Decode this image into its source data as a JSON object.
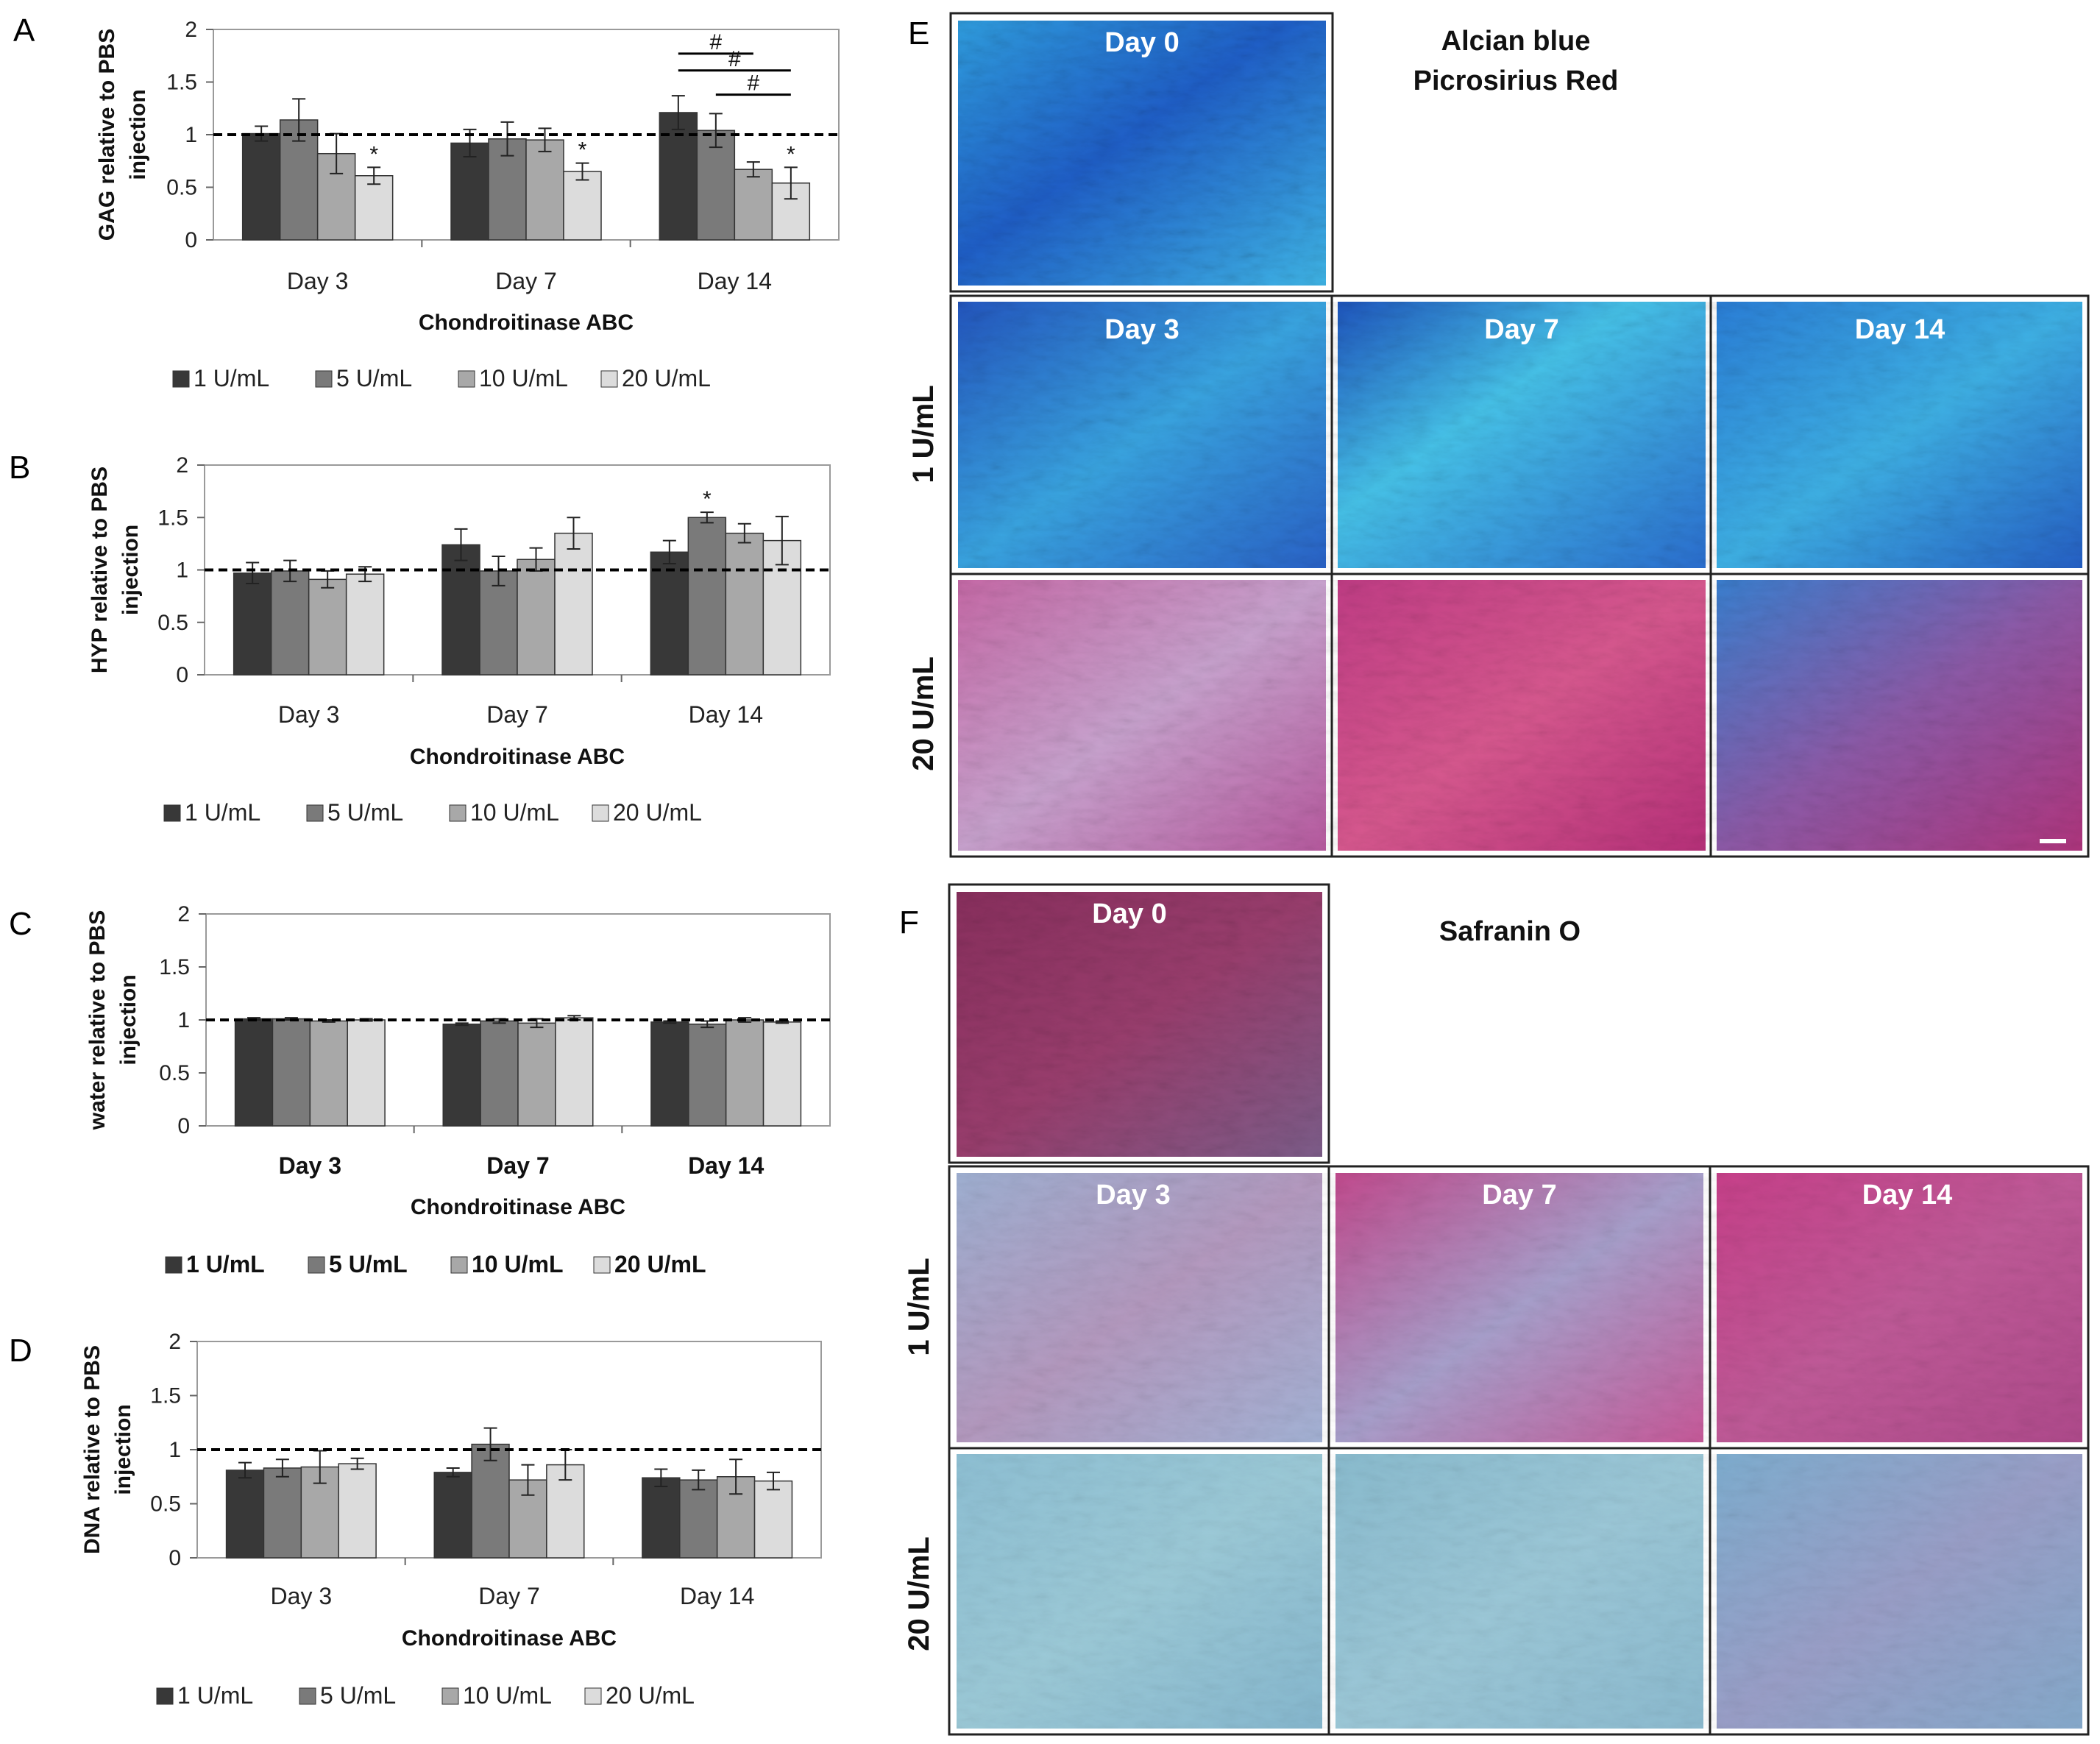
{
  "chart_data": [
    {
      "panel": "A",
      "type": "bar",
      "categories": [
        "Day 3",
        "Day 7",
        "Day 14"
      ],
      "xlabel": "Chondroitinase ABC",
      "ylabel": "GAG relative to PBS injection",
      "ylim": [
        0,
        2
      ],
      "yticks": [
        "0",
        "0.5",
        "1",
        "1.5",
        "2"
      ],
      "reference_line": 1,
      "bold_categories": false,
      "series": [
        {
          "name": "1 U/mL",
          "values": [
            1.01,
            0.92,
            1.21
          ],
          "errors": [
            0.07,
            0.13,
            0.16
          ]
        },
        {
          "name": "5 U/mL",
          "values": [
            1.14,
            0.96,
            1.04
          ],
          "errors": [
            0.2,
            0.16,
            0.16
          ]
        },
        {
          "name": "10 U/mL",
          "values": [
            0.82,
            0.95,
            0.67
          ],
          "errors": [
            0.19,
            0.11,
            0.07
          ]
        },
        {
          "name": "20 U/mL",
          "values": [
            0.61,
            0.65,
            0.54
          ],
          "errors": [
            0.08,
            0.08,
            0.15
          ]
        }
      ],
      "stars": [
        {
          "category": 0,
          "series": 3,
          "label": "*"
        },
        {
          "category": 1,
          "series": 3,
          "label": "*"
        },
        {
          "category": 2,
          "series": 3,
          "label": "*"
        }
      ],
      "brackets": [
        {
          "from_series": 0,
          "to_series": 2,
          "y": 1.77,
          "label": "#"
        },
        {
          "from_series": 0,
          "to_series": 3,
          "y": 1.61,
          "label": "#"
        },
        {
          "from_series": 1,
          "to_series": 3,
          "y": 1.38,
          "label": "#"
        }
      ]
    },
    {
      "panel": "B",
      "type": "bar",
      "categories": [
        "Day 3",
        "Day 7",
        "Day 14"
      ],
      "xlabel": "Chondroitinase ABC",
      "ylabel": "HYP relative to PBS injection",
      "ylim": [
        0,
        2
      ],
      "yticks": [
        "0",
        "0.5",
        "1",
        "1.5",
        "2"
      ],
      "reference_line": 1,
      "bold_categories": false,
      "series": [
        {
          "name": "1 U/mL",
          "values": [
            0.97,
            1.24,
            1.17
          ],
          "errors": [
            0.1,
            0.15,
            0.11
          ]
        },
        {
          "name": "5 U/mL",
          "values": [
            0.99,
            0.99,
            1.5
          ],
          "errors": [
            0.1,
            0.14,
            0.05
          ]
        },
        {
          "name": "10 U/mL",
          "values": [
            0.91,
            1.1,
            1.35
          ],
          "errors": [
            0.08,
            0.11,
            0.09
          ]
        },
        {
          "name": "20 U/mL",
          "values": [
            0.96,
            1.35,
            1.28
          ],
          "errors": [
            0.07,
            0.15,
            0.23
          ]
        }
      ],
      "stars": [
        {
          "category": 2,
          "series": 1,
          "label": "*"
        }
      ],
      "brackets": []
    },
    {
      "panel": "C",
      "type": "bar",
      "categories": [
        "Day 3",
        "Day 7",
        "Day 14"
      ],
      "xlabel": "Chondroitinase ABC",
      "ylabel": "water relative to PBS injection",
      "ylim": [
        0,
        2
      ],
      "yticks": [
        "0",
        "0.5",
        "1",
        "1.5",
        "2"
      ],
      "reference_line": 1,
      "bold_categories": true,
      "series": [
        {
          "name": "1 U/mL",
          "values": [
            1.01,
            0.96,
            0.98
          ],
          "errors": [
            0.01,
            0.01,
            0.01
          ]
        },
        {
          "name": "5 U/mL",
          "values": [
            1.01,
            0.99,
            0.96
          ],
          "errors": [
            0.01,
            0.02,
            0.03
          ]
        },
        {
          "name": "10 U/mL",
          "values": [
            0.99,
            0.97,
            1.0
          ],
          "errors": [
            0.01,
            0.04,
            0.02
          ]
        },
        {
          "name": "20 U/mL",
          "values": [
            1.0,
            1.02,
            0.98
          ],
          "errors": [
            0.01,
            0.02,
            0.01
          ]
        }
      ],
      "stars": [],
      "brackets": []
    },
    {
      "panel": "D",
      "type": "bar",
      "categories": [
        "Day 3",
        "Day 7",
        "Day 14"
      ],
      "xlabel": "Chondroitinase ABC",
      "ylabel": "DNA relative to PBS injection",
      "ylim": [
        0,
        2
      ],
      "yticks": [
        "0",
        "0.5",
        "1",
        "1.5",
        "2"
      ],
      "reference_line": 1,
      "bold_categories": false,
      "series": [
        {
          "name": "1 U/mL",
          "values": [
            0.81,
            0.79,
            0.74
          ],
          "errors": [
            0.07,
            0.04,
            0.08
          ]
        },
        {
          "name": "5 U/mL",
          "values": [
            0.83,
            1.05,
            0.72
          ],
          "errors": [
            0.08,
            0.15,
            0.09
          ]
        },
        {
          "name": "10 U/mL",
          "values": [
            0.84,
            0.72,
            0.75
          ],
          "errors": [
            0.15,
            0.14,
            0.16
          ]
        },
        {
          "name": "20 U/mL",
          "values": [
            0.87,
            0.86,
            0.71
          ],
          "errors": [
            0.05,
            0.14,
            0.08
          ]
        }
      ],
      "stars": [],
      "brackets": []
    }
  ],
  "series_colors": [
    "#383838",
    "#7a7a7a",
    "#a8a8a8",
    "#dcdcdc"
  ],
  "panels": {
    "A": "A",
    "B": "B",
    "C": "C",
    "D": "D",
    "E": "E",
    "F": "F"
  },
  "histology": {
    "E": {
      "stain_titles": [
        "Alcian blue",
        "Picrosirius Red"
      ],
      "row_labels": [
        "1 U/mL",
        "20 U/mL"
      ],
      "day0_label": "Day 0",
      "column_labels": [
        "Day 3",
        "Day 7",
        "Day 14"
      ]
    },
    "F": {
      "stain_titles": [
        "Safranin O"
      ],
      "row_labels": [
        "1 U/mL",
        "20 U/mL"
      ],
      "day0_label": "Day 0",
      "column_labels": [
        "Day 3",
        "Day 7",
        "Day 14"
      ]
    }
  }
}
